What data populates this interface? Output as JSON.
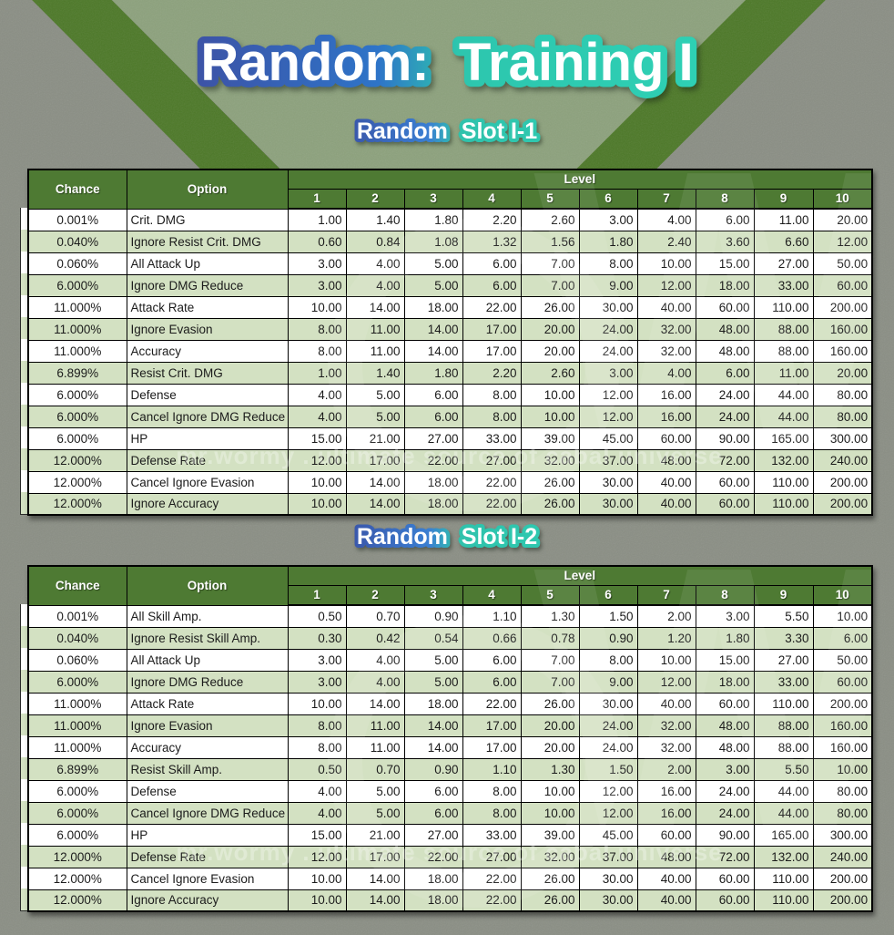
{
  "title": {
    "part1": "Random:",
    "part2": "Training I"
  },
  "watermark": {
    "text": "mr.wormy . ultimate source of cabal universe",
    "letter": "W"
  },
  "colors": {
    "header_green": "#4e7a33",
    "row_green": "#d3e1c2",
    "row_white": "#ffffff",
    "outline_blue": "#3f4da0",
    "outline_teal": "#2dc6ae",
    "bg_gray": "#8a8e84",
    "bg_stripe_green": "#4c7827",
    "bg_wedge_sage": "#8ca17c"
  },
  "tables": [
    {
      "subtitle_part1": "Random",
      "subtitle_part2": "Slot I-1",
      "headers": {
        "chance": "Chance",
        "option": "Option",
        "level": "Level",
        "levels": [
          "1",
          "2",
          "3",
          "4",
          "5",
          "6",
          "7",
          "8",
          "9",
          "10"
        ]
      },
      "rows": [
        {
          "chance": "0.001%",
          "option": "Crit. DMG",
          "values": [
            "1.00",
            "1.40",
            "1.80",
            "2.20",
            "2.60",
            "3.00",
            "4.00",
            "6.00",
            "11.00",
            "20.00"
          ]
        },
        {
          "chance": "0.040%",
          "option": "Ignore Resist Crit. DMG",
          "values": [
            "0.60",
            "0.84",
            "1.08",
            "1.32",
            "1.56",
            "1.80",
            "2.40",
            "3.60",
            "6.60",
            "12.00"
          ]
        },
        {
          "chance": "0.060%",
          "option": "All Attack Up",
          "values": [
            "3.00",
            "4.00",
            "5.00",
            "6.00",
            "7.00",
            "8.00",
            "10.00",
            "15.00",
            "27.00",
            "50.00"
          ]
        },
        {
          "chance": "6.000%",
          "option": "Ignore DMG Reduce",
          "values": [
            "3.00",
            "4.00",
            "5.00",
            "6.00",
            "7.00",
            "9.00",
            "12.00",
            "18.00",
            "33.00",
            "60.00"
          ]
        },
        {
          "chance": "11.000%",
          "option": "Attack Rate",
          "values": [
            "10.00",
            "14.00",
            "18.00",
            "22.00",
            "26.00",
            "30.00",
            "40.00",
            "60.00",
            "110.00",
            "200.00"
          ]
        },
        {
          "chance": "11.000%",
          "option": "Ignore Evasion",
          "values": [
            "8.00",
            "11.00",
            "14.00",
            "17.00",
            "20.00",
            "24.00",
            "32.00",
            "48.00",
            "88.00",
            "160.00"
          ]
        },
        {
          "chance": "11.000%",
          "option": "Accuracy",
          "values": [
            "8.00",
            "11.00",
            "14.00",
            "17.00",
            "20.00",
            "24.00",
            "32.00",
            "48.00",
            "88.00",
            "160.00"
          ]
        },
        {
          "chance": "6.899%",
          "option": "Resist Crit. DMG",
          "values": [
            "1.00",
            "1.40",
            "1.80",
            "2.20",
            "2.60",
            "3.00",
            "4.00",
            "6.00",
            "11.00",
            "20.00"
          ]
        },
        {
          "chance": "6.000%",
          "option": "Defense",
          "values": [
            "4.00",
            "5.00",
            "6.00",
            "8.00",
            "10.00",
            "12.00",
            "16.00",
            "24.00",
            "44.00",
            "80.00"
          ]
        },
        {
          "chance": "6.000%",
          "option": "Cancel Ignore DMG Reduce",
          "values": [
            "4.00",
            "5.00",
            "6.00",
            "8.00",
            "10.00",
            "12.00",
            "16.00",
            "24.00",
            "44.00",
            "80.00"
          ]
        },
        {
          "chance": "6.000%",
          "option": "HP",
          "values": [
            "15.00",
            "21.00",
            "27.00",
            "33.00",
            "39.00",
            "45.00",
            "60.00",
            "90.00",
            "165.00",
            "300.00"
          ]
        },
        {
          "chance": "12.000%",
          "option": "Defense Rate",
          "values": [
            "12.00",
            "17.00",
            "22.00",
            "27.00",
            "32.00",
            "37.00",
            "48.00",
            "72.00",
            "132.00",
            "240.00"
          ]
        },
        {
          "chance": "12.000%",
          "option": "Cancel Ignore Evasion",
          "values": [
            "10.00",
            "14.00",
            "18.00",
            "22.00",
            "26.00",
            "30.00",
            "40.00",
            "60.00",
            "110.00",
            "200.00"
          ]
        },
        {
          "chance": "12.000%",
          "option": "Ignore Accuracy",
          "values": [
            "10.00",
            "14.00",
            "18.00",
            "22.00",
            "26.00",
            "30.00",
            "40.00",
            "60.00",
            "110.00",
            "200.00"
          ]
        }
      ]
    },
    {
      "subtitle_part1": "Random",
      "subtitle_part2": "Slot I-2",
      "headers": {
        "chance": "Chance",
        "option": "Option",
        "level": "Level",
        "levels": [
          "1",
          "2",
          "3",
          "4",
          "5",
          "6",
          "7",
          "8",
          "9",
          "10"
        ]
      },
      "rows": [
        {
          "chance": "0.001%",
          "option": "All Skill Amp.",
          "values": [
            "0.50",
            "0.70",
            "0.90",
            "1.10",
            "1.30",
            "1.50",
            "2.00",
            "3.00",
            "5.50",
            "10.00"
          ]
        },
        {
          "chance": "0.040%",
          "option": "Ignore Resist Skill Amp.",
          "values": [
            "0.30",
            "0.42",
            "0.54",
            "0.66",
            "0.78",
            "0.90",
            "1.20",
            "1.80",
            "3.30",
            "6.00"
          ]
        },
        {
          "chance": "0.060%",
          "option": "All Attack Up",
          "values": [
            "3.00",
            "4.00",
            "5.00",
            "6.00",
            "7.00",
            "8.00",
            "10.00",
            "15.00",
            "27.00",
            "50.00"
          ]
        },
        {
          "chance": "6.000%",
          "option": "Ignore DMG Reduce",
          "values": [
            "3.00",
            "4.00",
            "5.00",
            "6.00",
            "7.00",
            "9.00",
            "12.00",
            "18.00",
            "33.00",
            "60.00"
          ]
        },
        {
          "chance": "11.000%",
          "option": "Attack Rate",
          "values": [
            "10.00",
            "14.00",
            "18.00",
            "22.00",
            "26.00",
            "30.00",
            "40.00",
            "60.00",
            "110.00",
            "200.00"
          ]
        },
        {
          "chance": "11.000%",
          "option": "Ignore Evasion",
          "values": [
            "8.00",
            "11.00",
            "14.00",
            "17.00",
            "20.00",
            "24.00",
            "32.00",
            "48.00",
            "88.00",
            "160.00"
          ]
        },
        {
          "chance": "11.000%",
          "option": "Accuracy",
          "values": [
            "8.00",
            "11.00",
            "14.00",
            "17.00",
            "20.00",
            "24.00",
            "32.00",
            "48.00",
            "88.00",
            "160.00"
          ]
        },
        {
          "chance": "6.899%",
          "option": "Resist Skill Amp.",
          "values": [
            "0.50",
            "0.70",
            "0.90",
            "1.10",
            "1.30",
            "1.50",
            "2.00",
            "3.00",
            "5.50",
            "10.00"
          ]
        },
        {
          "chance": "6.000%",
          "option": "Defense",
          "values": [
            "4.00",
            "5.00",
            "6.00",
            "8.00",
            "10.00",
            "12.00",
            "16.00",
            "24.00",
            "44.00",
            "80.00"
          ]
        },
        {
          "chance": "6.000%",
          "option": "Cancel Ignore DMG Reduce",
          "values": [
            "4.00",
            "5.00",
            "6.00",
            "8.00",
            "10.00",
            "12.00",
            "16.00",
            "24.00",
            "44.00",
            "80.00"
          ]
        },
        {
          "chance": "6.000%",
          "option": "HP",
          "values": [
            "15.00",
            "21.00",
            "27.00",
            "33.00",
            "39.00",
            "45.00",
            "60.00",
            "90.00",
            "165.00",
            "300.00"
          ]
        },
        {
          "chance": "12.000%",
          "option": "Defense Rate",
          "values": [
            "12.00",
            "17.00",
            "22.00",
            "27.00",
            "32.00",
            "37.00",
            "48.00",
            "72.00",
            "132.00",
            "240.00"
          ]
        },
        {
          "chance": "12.000%",
          "option": "Cancel Ignore Evasion",
          "values": [
            "10.00",
            "14.00",
            "18.00",
            "22.00",
            "26.00",
            "30.00",
            "40.00",
            "60.00",
            "110.00",
            "200.00"
          ]
        },
        {
          "chance": "12.000%",
          "option": "Ignore Accuracy",
          "values": [
            "10.00",
            "14.00",
            "18.00",
            "22.00",
            "26.00",
            "30.00",
            "40.00",
            "60.00",
            "110.00",
            "200.00"
          ]
        }
      ]
    }
  ]
}
